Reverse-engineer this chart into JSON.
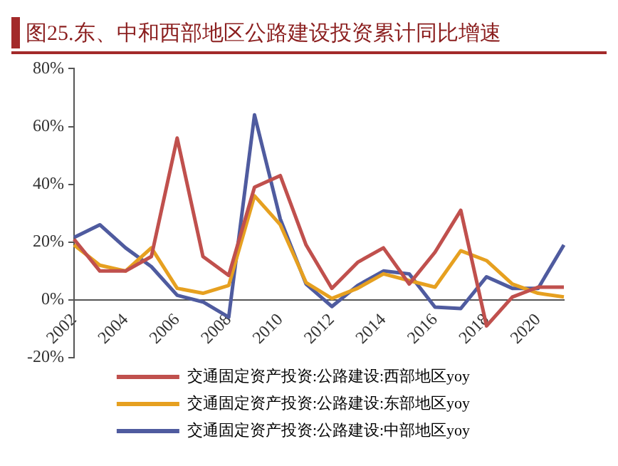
{
  "chart_data": {
    "type": "line",
    "title": "图25.东、中和西部地区公路建设投资累计同比增速",
    "categories": [
      "2002",
      null,
      "2004",
      null,
      "2006",
      null,
      "2008",
      null,
      "2010",
      null,
      "2012",
      null,
      "2014",
      null,
      "2016",
      null,
      "2018",
      null,
      "2020",
      null
    ],
    "series": [
      {
        "name": "交通固定资产投资:公路建设:西部地区yoy",
        "color": "#c0504d",
        "values": [
          21,
          10,
          10,
          15,
          56,
          15,
          8.5,
          39,
          43,
          19,
          4,
          13,
          18,
          5.5,
          16.5,
          31,
          -9,
          1,
          4.4,
          4.4
        ]
      },
      {
        "name": "交通固定资产投资:公路建设:东部地区yoy",
        "color": "#e6a020",
        "values": [
          19,
          12,
          10,
          18,
          4,
          2.3,
          5,
          36,
          26,
          6,
          0.5,
          4,
          9,
          6.7,
          4.4,
          17,
          13.6,
          5.5,
          2.3,
          1
        ]
      },
      {
        "name": "交通固定资产投资:公路建设:中部地区yoy",
        "color": "#4f5b9f",
        "values": [
          21.6,
          26,
          18,
          11.5,
          1.6,
          -0.7,
          -6,
          64,
          28,
          5.5,
          -2.3,
          5,
          10,
          9,
          -2.5,
          -3,
          8,
          4,
          4,
          19
        ]
      }
    ],
    "ylim": [
      -20,
      80
    ],
    "yticks": [
      {
        "value": -20,
        "label": "-20%"
      },
      {
        "value": 0,
        "label": "0%"
      },
      {
        "value": 20,
        "label": "20%"
      },
      {
        "value": 40,
        "label": "40%"
      },
      {
        "value": 60,
        "label": "60%"
      },
      {
        "value": 80,
        "label": "80%"
      }
    ],
    "grid": false,
    "legend": "bottom",
    "marker": "none",
    "line_style": "solid"
  }
}
